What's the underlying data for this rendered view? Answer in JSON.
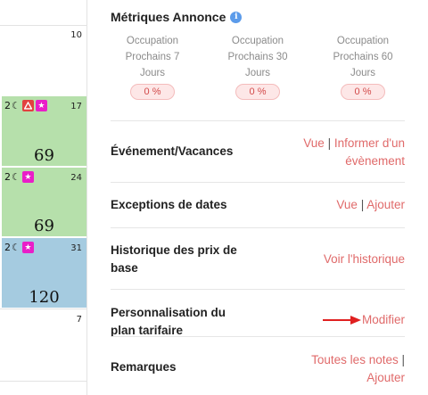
{
  "calendar": {
    "cells": [
      {
        "day": "10",
        "price": "",
        "nights": "",
        "style": "plain"
      },
      {
        "day": "17",
        "price": "69",
        "nights": "2",
        "style": "green",
        "badges": [
          "red-warning-icon",
          "pink-star-icon"
        ]
      },
      {
        "day": "24",
        "price": "69",
        "nights": "2",
        "style": "green",
        "badges": [
          "pink-star-icon"
        ]
      },
      {
        "day": "31",
        "price": "120",
        "nights": "2",
        "style": "blue",
        "badges": [
          "pink-star-icon"
        ]
      },
      {
        "day": "7",
        "price": "",
        "nights": "",
        "style": "plain"
      }
    ],
    "colors": {
      "green": "#b6e0ab",
      "blue": "#a5cbe0",
      "red_badge": "#e2413f",
      "pink_badge": "#e91ec8"
    }
  },
  "metrics": {
    "title": "Métriques Annonce",
    "info_icon": "i",
    "items": [
      {
        "line1": "Occupation",
        "line2": "Prochains 7",
        "line3": "Jours",
        "value": "0 %"
      },
      {
        "line1": "Occupation",
        "line2": "Prochains 30",
        "line3": "Jours",
        "value": "0 %"
      },
      {
        "line1": "Occupation",
        "line2": "Prochains 60",
        "line3": "Jours",
        "value": "0 %"
      }
    ]
  },
  "rows": {
    "events": {
      "label": "Événement/Vacances",
      "link_view": "Vue",
      "separator": "|",
      "link_inform_1": "Informer d'un",
      "link_inform_2": "évènement"
    },
    "exceptions": {
      "label": "Exceptions de dates",
      "link_view": "Vue",
      "separator": "|",
      "link_add": "Ajouter"
    },
    "history": {
      "label_1": "Historique des prix de",
      "label_2": "base",
      "link": "Voir l'historique"
    },
    "personalization": {
      "label_1": "Personnalisation du",
      "label_2": "plan tarifaire",
      "link": "Modifier"
    },
    "notes": {
      "label": "Remarques",
      "link_all": "Toutes les notes",
      "separator": "|",
      "link_add": "Ajouter"
    }
  },
  "theme": {
    "link_color": "#e06a6a",
    "arrow_color": "#e02020",
    "info_blue": "#5b9bea"
  }
}
